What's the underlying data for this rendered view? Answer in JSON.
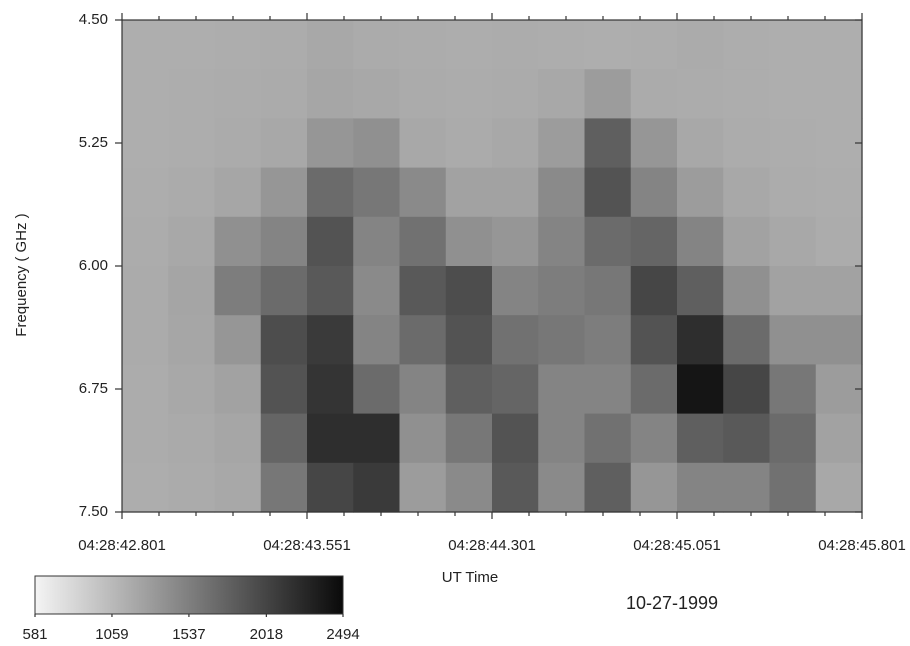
{
  "chart_data": {
    "type": "heatmap",
    "ylabel": "Frequency ( GHz )",
    "xlabel": "UT Time",
    "annotation": "10-27-1999",
    "x": [
      16122.89475,
      16123.08225,
      16123.26975,
      16123.45725,
      16123.64475,
      16123.83225,
      16124.01975,
      16124.20725,
      16124.39475,
      16124.58225,
      16124.76975,
      16124.95725,
      16125.14475,
      16125.33225,
      16125.51975,
      16125.70725
    ],
    "y": [
      4.65,
      4.95,
      5.25,
      5.55,
      5.85,
      6.15,
      6.45,
      6.75,
      7.05,
      7.35
    ],
    "z": [
      [
        1150,
        1150,
        1160,
        1170,
        1200,
        1180,
        1170,
        1160,
        1170,
        1160,
        1150,
        1160,
        1180,
        1160,
        1150,
        1150
      ],
      [
        1150,
        1160,
        1170,
        1180,
        1220,
        1200,
        1180,
        1170,
        1180,
        1200,
        1300,
        1180,
        1170,
        1160,
        1150,
        1150
      ],
      [
        1150,
        1160,
        1180,
        1200,
        1350,
        1400,
        1200,
        1180,
        1200,
        1300,
        1800,
        1350,
        1200,
        1170,
        1160,
        1150
      ],
      [
        1160,
        1180,
        1220,
        1350,
        1700,
        1600,
        1450,
        1250,
        1250,
        1450,
        1900,
        1500,
        1300,
        1200,
        1170,
        1160
      ],
      [
        1170,
        1200,
        1400,
        1500,
        1900,
        1500,
        1650,
        1400,
        1350,
        1500,
        1700,
        1750,
        1500,
        1250,
        1200,
        1170
      ],
      [
        1180,
        1230,
        1550,
        1700,
        1850,
        1450,
        1850,
        1950,
        1500,
        1550,
        1600,
        2000,
        1800,
        1400,
        1250,
        1250
      ],
      [
        1180,
        1220,
        1350,
        1950,
        2100,
        1500,
        1700,
        1900,
        1650,
        1600,
        1550,
        1900,
        2200,
        1700,
        1400,
        1400
      ],
      [
        1170,
        1200,
        1250,
        1900,
        2150,
        1700,
        1500,
        1800,
        1750,
        1500,
        1500,
        1700,
        2400,
        2000,
        1600,
        1300
      ],
      [
        1170,
        1190,
        1220,
        1750,
        2200,
        2200,
        1400,
        1600,
        1900,
        1500,
        1650,
        1500,
        1800,
        1850,
        1700,
        1250
      ],
      [
        1160,
        1180,
        1200,
        1600,
        2000,
        2100,
        1300,
        1450,
        1850,
        1450,
        1800,
        1350,
        1500,
        1500,
        1650,
        1200
      ]
    ],
    "zlim": [
      581,
      2494
    ],
    "zticks": [
      581,
      1059,
      1537,
      2018,
      2494
    ],
    "colors": [
      "#f4f4f4",
      "#0a0a0a"
    ],
    "xlim": [
      16122.801,
      16125.801
    ],
    "xticks": [
      {
        "value": 16122.801,
        "label": "04:28:42.801"
      },
      {
        "value": 16123.551,
        "label": "04:28:43.551"
      },
      {
        "value": 16124.301,
        "label": "04:28:44.301"
      },
      {
        "value": 16125.051,
        "label": "04:28:45.051"
      },
      {
        "value": 16125.801,
        "label": "04:28:45.801"
      }
    ],
    "xminorticks": [
      16122.951,
      16123.101,
      16123.251,
      16123.401,
      16123.701,
      16123.851,
      16124.001,
      16124.151,
      16124.451,
      16124.601,
      16124.751,
      16124.901,
      16125.201,
      16125.351,
      16125.501,
      16125.651
    ],
    "ylim": [
      7.5,
      4.5
    ],
    "yticks": [
      {
        "value": 4.5,
        "label": "4.50"
      },
      5.25,
      {
        "value": 6,
        "label": "6.00"
      },
      6.75,
      {
        "value": 7.5,
        "label": "7.50"
      }
    ]
  }
}
